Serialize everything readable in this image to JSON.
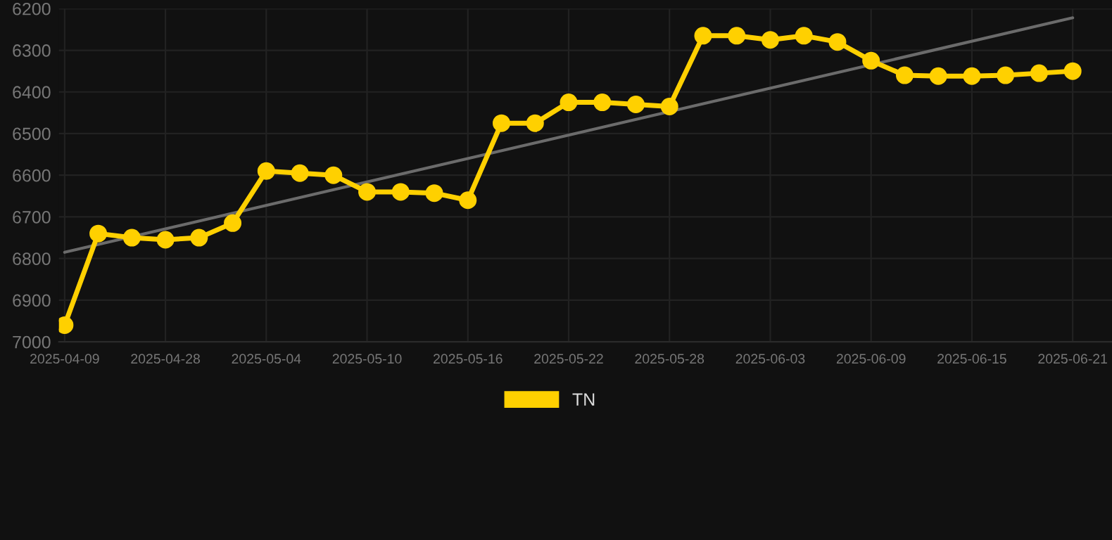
{
  "chart_data": {
    "type": "line",
    "categories": [
      "2025-04-09",
      null,
      null,
      "2025-04-28",
      null,
      null,
      "2025-05-04",
      null,
      null,
      "2025-05-10",
      null,
      null,
      "2025-05-16",
      null,
      null,
      "2025-05-22",
      null,
      null,
      "2025-05-28",
      null,
      null,
      "2025-06-03",
      null,
      null,
      "2025-06-09",
      null,
      null,
      "2025-06-15",
      null,
      null,
      "2025-06-21"
    ],
    "series": [
      {
        "name": "TN",
        "color": "#ffd000",
        "values": [
          6960,
          6740,
          6750,
          6755,
          6750,
          6715,
          6590,
          6595,
          6600,
          6640,
          6640,
          6643,
          6660,
          6475,
          6475,
          6425,
          6425,
          6430,
          6435,
          6265,
          6265,
          6275,
          6265,
          6280,
          6325,
          6360,
          6362,
          6362,
          6360,
          6355,
          6350
        ]
      },
      {
        "type": "line",
        "color": "#6b6b6b",
        "marker": "none",
        "values": [
          6785,
          null,
          null,
          null,
          null,
          null,
          null,
          null,
          null,
          null,
          null,
          null,
          null,
          null,
          null,
          null,
          null,
          null,
          null,
          null,
          null,
          null,
          null,
          null,
          null,
          null,
          null,
          null,
          null,
          null,
          6222
        ]
      }
    ],
    "ylim": [
      7000,
      6200
    ],
    "yticks": [
      6200,
      6300,
      6400,
      6500,
      6600,
      6700,
      6800,
      6900,
      7000
    ],
    "grid": true,
    "legend": "bottom",
    "marker": "circle",
    "line_style": "solid"
  }
}
